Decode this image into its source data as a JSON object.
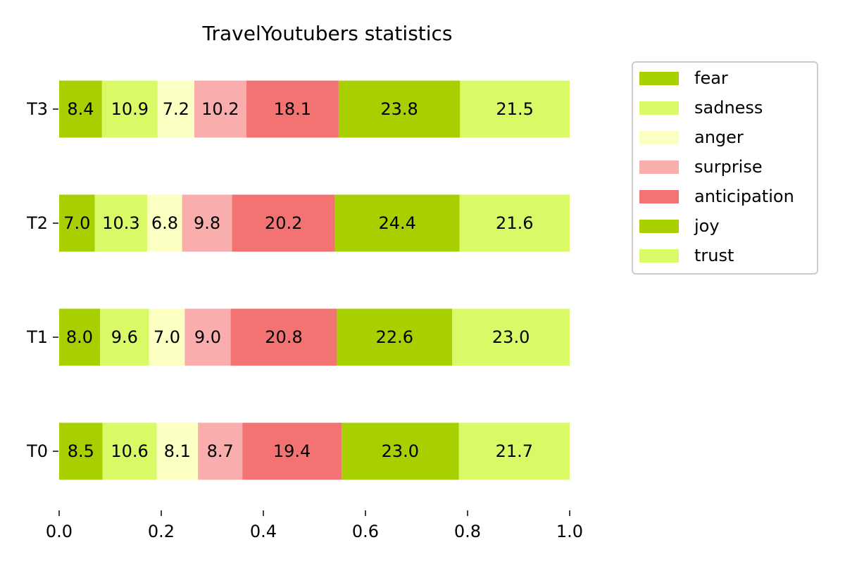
{
  "chart_data": {
    "type": "bar",
    "orientation": "horizontal",
    "stacked": true,
    "normalized": true,
    "title": "TravelYoutubers statistics",
    "xlabel": "",
    "ylabel": "",
    "xlim": [
      0,
      1
    ],
    "xticks": [
      "0.0",
      "0.2",
      "0.4",
      "0.6",
      "0.8",
      "1.0"
    ],
    "categories": [
      "T0",
      "T1",
      "T2",
      "T3"
    ],
    "series": [
      {
        "name": "fear",
        "color": "#a8d000",
        "values": [
          8.5,
          8.0,
          7.0,
          8.4
        ],
        "labels": [
          "8.5",
          "8.0",
          "7.0",
          "8.4"
        ]
      },
      {
        "name": "sadness",
        "color": "#d9f966",
        "values": [
          10.6,
          9.6,
          10.3,
          10.9
        ],
        "labels": [
          "10.6",
          "9.6",
          "10.3",
          "10.9"
        ]
      },
      {
        "name": "anger",
        "color": "#fbffc2",
        "values": [
          8.1,
          7.0,
          6.8,
          7.2
        ],
        "labels": [
          "8.1",
          "7.0",
          "6.8",
          "7.2"
        ]
      },
      {
        "name": "surprise",
        "color": "#f9adad",
        "values": [
          8.7,
          9.0,
          9.8,
          10.2
        ],
        "labels": [
          "8.7",
          "9.0",
          "9.8",
          "10.2"
        ]
      },
      {
        "name": "anticipation",
        "color": "#f37272",
        "values": [
          19.4,
          20.8,
          20.2,
          18.1
        ],
        "labels": [
          "19.4",
          "20.8",
          "20.2",
          "18.1"
        ]
      },
      {
        "name": "joy",
        "color": "#a8d000",
        "values": [
          23.0,
          22.6,
          24.4,
          23.8
        ],
        "labels": [
          "23.0",
          "22.6",
          "24.4",
          "23.8"
        ]
      },
      {
        "name": "trust",
        "color": "#d9f966",
        "values": [
          21.7,
          23.0,
          21.6,
          21.5
        ],
        "labels": [
          "21.7",
          "23.0",
          "21.6",
          "21.5"
        ]
      }
    ],
    "grid": false,
    "legend_position": "upper right, outside plot"
  }
}
